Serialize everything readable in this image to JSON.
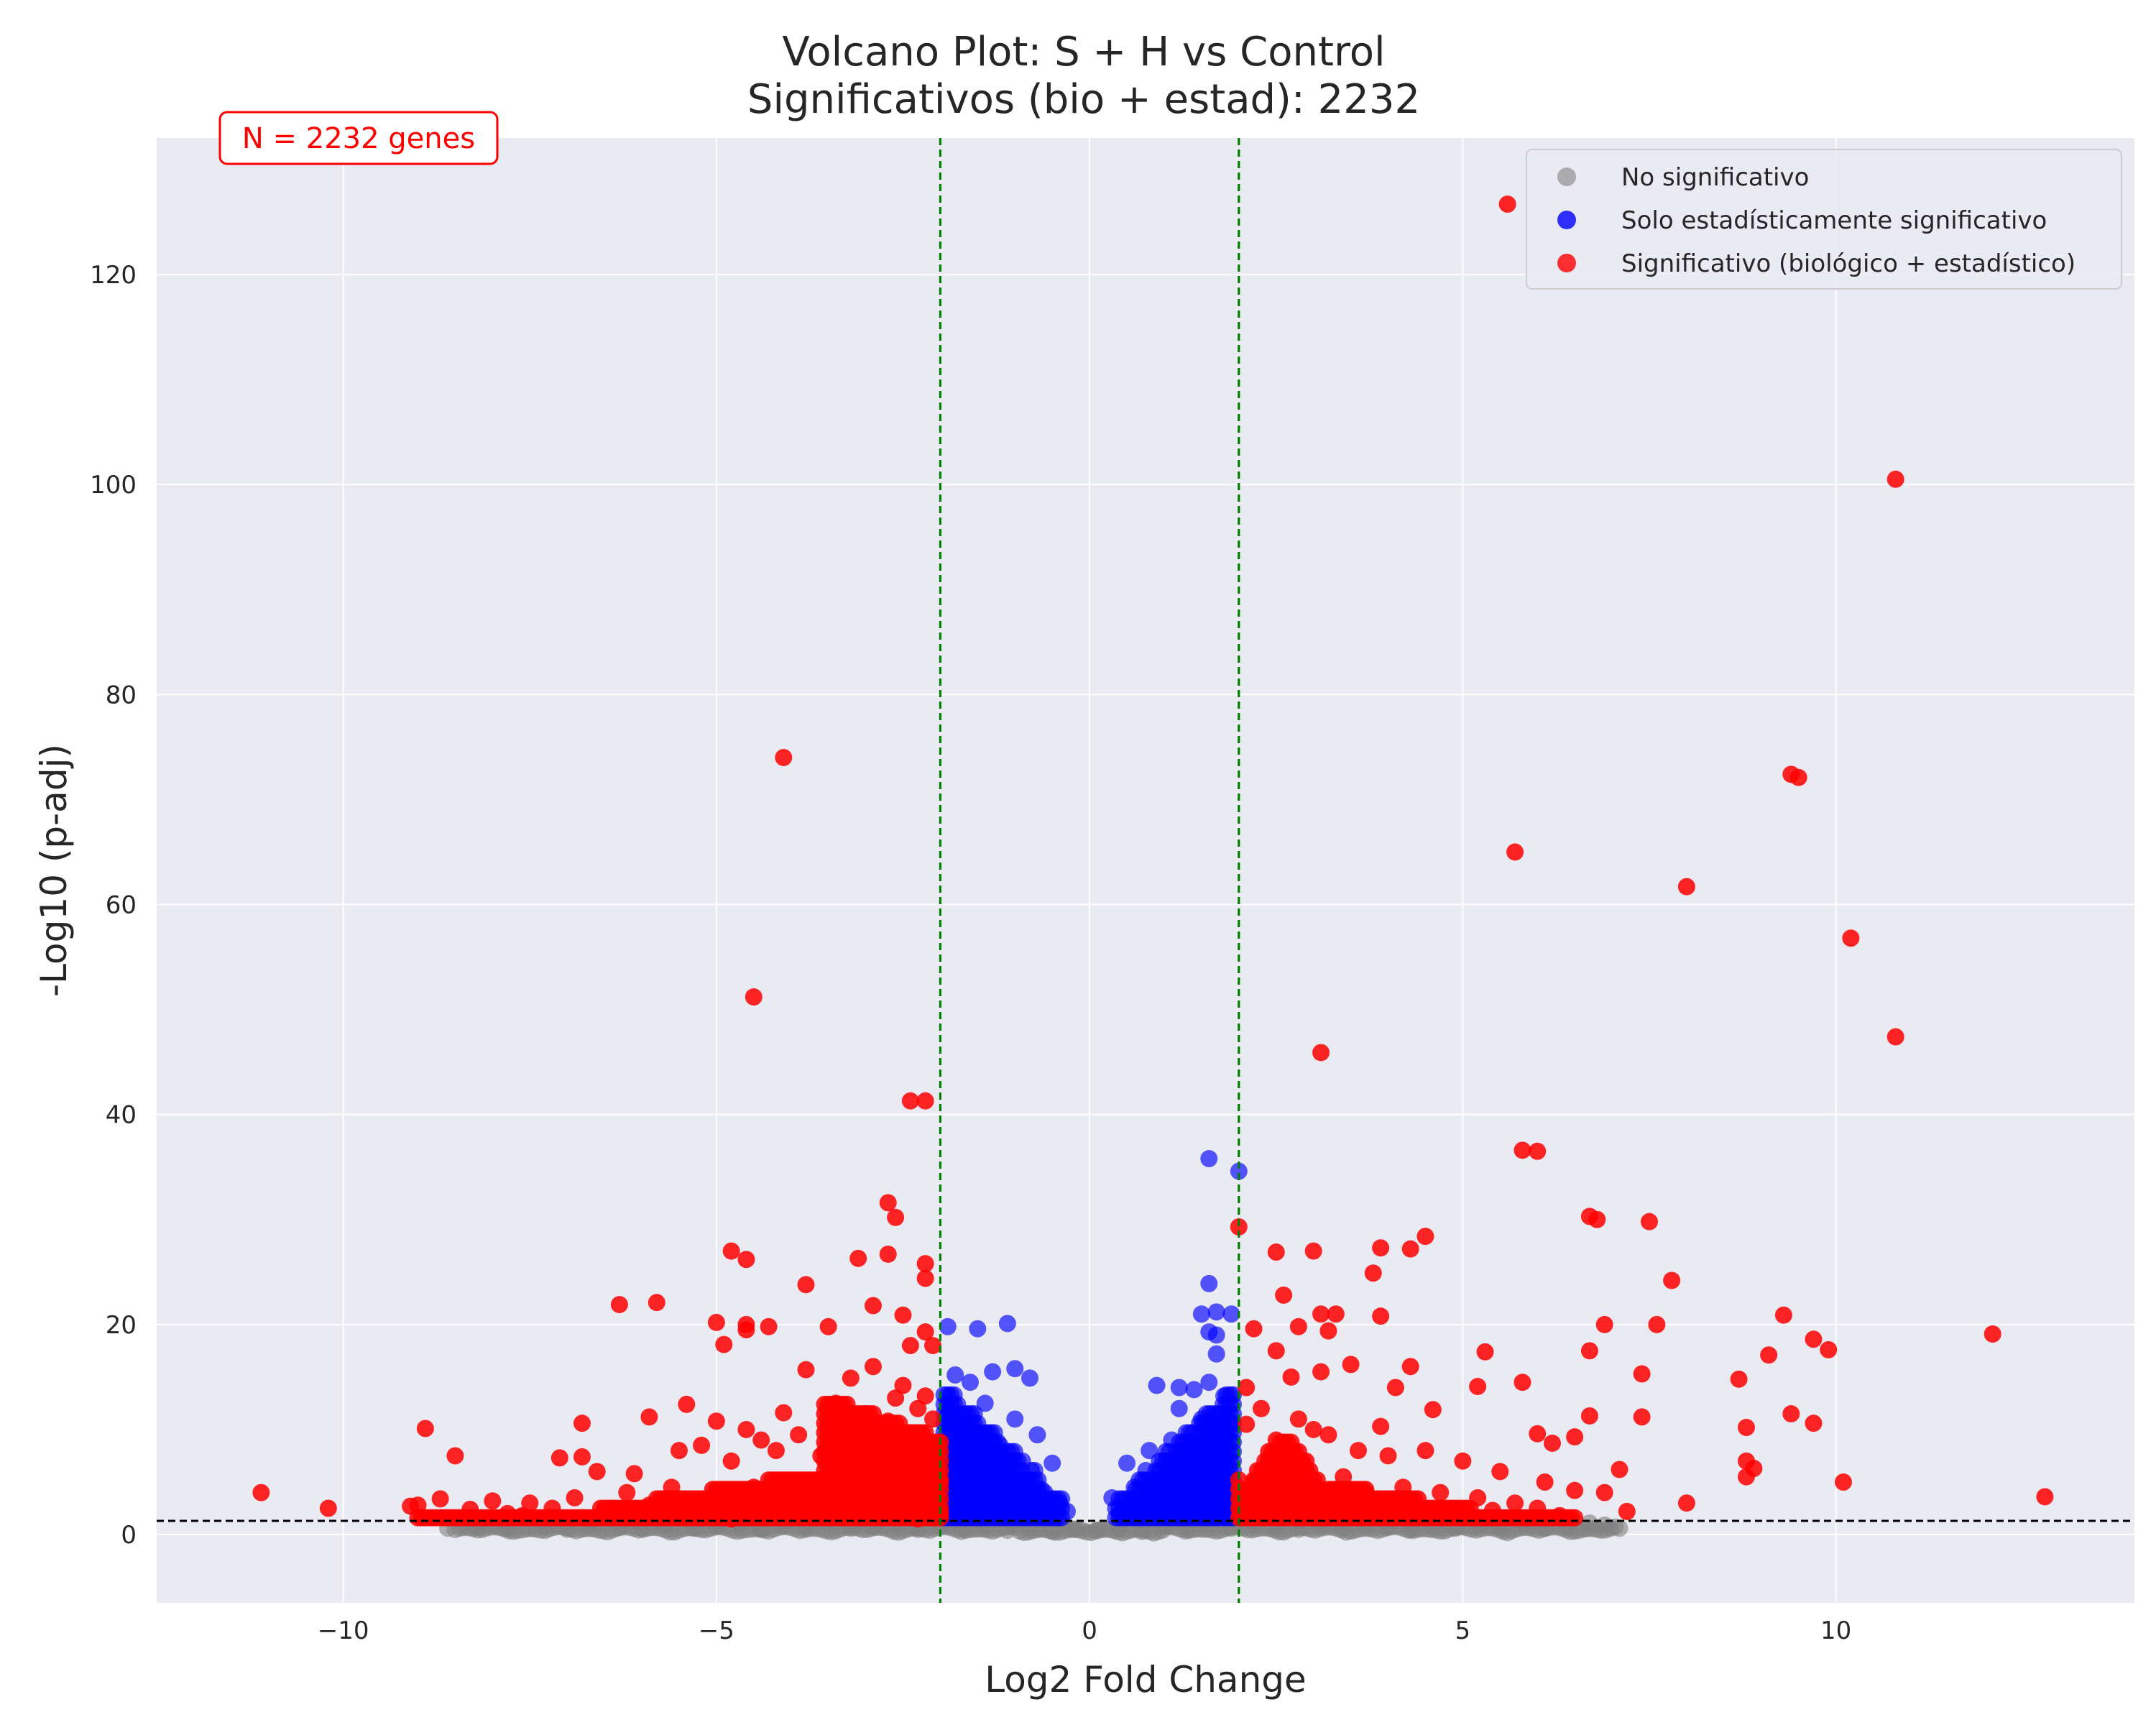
{
  "chart_data": {
    "type": "scatter",
    "title": "Volcano Plot: S + H vs Control",
    "subtitle": "Significativos (bio + estad): 2232",
    "xlabel": "Log2 Fold Change",
    "ylabel": "-Log10 (p-adj)",
    "xlim": [
      -12.5,
      14
    ],
    "ylim": [
      -6.5,
      133
    ],
    "xticks": [
      -10,
      -5,
      0,
      5,
      10
    ],
    "xtick_labels": [
      "−10",
      "−5",
      "0",
      "5",
      "10"
    ],
    "yticks": [
      0,
      20,
      40,
      60,
      80,
      100,
      120
    ],
    "ytick_labels": [
      "0",
      "20",
      "40",
      "60",
      "80",
      "100",
      "120"
    ],
    "grid": true,
    "background": "#eaeaf2",
    "legend_position": "top-right",
    "annotation": "N = 2232 genes",
    "thresholds": {
      "x": [
        -2,
        2
      ],
      "y": 1.3
    },
    "colors": {
      "ns": "#808080",
      "stat": "#0000ff",
      "sig": "#ff0000",
      "vline": "#008000",
      "hline": "#000000"
    },
    "series": [
      {
        "name": "No significativo",
        "color": "#808080",
        "points": [
          [
            -8.6,
            0.6
          ],
          [
            -8.2,
            0.7
          ],
          [
            -7.8,
            0.6
          ],
          [
            -7.3,
            0.8
          ],
          [
            -7.0,
            0.5
          ],
          [
            -6.7,
            0.9
          ],
          [
            -6.3,
            0.7
          ],
          [
            -6.0,
            0.6
          ],
          [
            -5.7,
            0.9
          ],
          [
            -5.3,
            0.6
          ],
          [
            -5.0,
            0.8
          ],
          [
            -4.7,
            1.0
          ],
          [
            -4.4,
            0.5
          ],
          [
            -4.1,
            0.9
          ],
          [
            -3.8,
            0.7
          ],
          [
            -3.5,
            1.1
          ],
          [
            -3.2,
            0.6
          ],
          [
            -2.9,
            0.8
          ],
          [
            -2.6,
            1.0
          ],
          [
            -2.3,
            0.5
          ],
          [
            -2.0,
            0.8
          ],
          [
            -1.7,
            0.6
          ],
          [
            -1.4,
            0.9
          ],
          [
            -1.1,
            0.4
          ],
          [
            -0.8,
            0.7
          ],
          [
            -0.5,
            0.3
          ],
          [
            -0.2,
            0.5
          ],
          [
            0.1,
            0.4
          ],
          [
            0.4,
            0.6
          ],
          [
            0.7,
            0.3
          ],
          [
            1.0,
            0.8
          ],
          [
            1.3,
            0.5
          ],
          [
            1.6,
            0.9
          ],
          [
            1.9,
            0.6
          ],
          [
            2.2,
            1.0
          ],
          [
            2.5,
            0.7
          ],
          [
            2.8,
            0.5
          ],
          [
            3.1,
            0.9
          ],
          [
            3.4,
            0.6
          ],
          [
            3.7,
            1.0
          ],
          [
            4.0,
            0.7
          ],
          [
            4.3,
            0.5
          ],
          [
            4.6,
            0.8
          ],
          [
            4.9,
            0.6
          ],
          [
            5.2,
            0.9
          ],
          [
            5.5,
            0.7
          ],
          [
            5.8,
            1.0
          ],
          [
            6.1,
            0.6
          ],
          [
            6.4,
            0.8
          ],
          [
            6.7,
            1.1
          ],
          [
            6.9,
            0.9
          ],
          [
            7.1,
            0.6
          ]
        ]
      },
      {
        "name": "Solo estadísticamente significativo",
        "color": "#0000ff",
        "points": [
          [
            -1.9,
            19.8
          ],
          [
            -1.5,
            19.6
          ],
          [
            -1.1,
            20.1
          ],
          [
            -1.8,
            15.2
          ],
          [
            -1.3,
            15.5
          ],
          [
            -1.0,
            15.8
          ],
          [
            -0.8,
            14.9
          ],
          [
            -1.6,
            14.5
          ],
          [
            -1.9,
            12.0
          ],
          [
            -1.4,
            12.5
          ],
          [
            -1.0,
            11.0
          ],
          [
            -0.7,
            9.5
          ],
          [
            -0.5,
            6.8
          ],
          [
            -1.7,
            9.0
          ],
          [
            -1.2,
            8.5
          ],
          [
            -0.9,
            7.0
          ],
          [
            -1.8,
            6.0
          ],
          [
            -1.4,
            5.5
          ],
          [
            -0.6,
            4.0
          ],
          [
            -0.4,
            3.0
          ],
          [
            -1.9,
            3.5
          ],
          [
            -1.1,
            3.0
          ],
          [
            -0.3,
            2.2
          ],
          [
            -1.6,
            2.5
          ],
          [
            1.6,
            35.8
          ],
          [
            2.0,
            34.6
          ],
          [
            1.6,
            23.9
          ],
          [
            1.5,
            21.0
          ],
          [
            1.7,
            21.2
          ],
          [
            1.6,
            19.3
          ],
          [
            1.7,
            19.0
          ],
          [
            1.9,
            21.0
          ],
          [
            0.9,
            14.2
          ],
          [
            1.2,
            14.0
          ],
          [
            1.4,
            13.8
          ],
          [
            1.6,
            14.5
          ],
          [
            1.8,
            13.2
          ],
          [
            1.7,
            17.2
          ],
          [
            1.2,
            12.0
          ],
          [
            1.5,
            11.0
          ],
          [
            1.9,
            10.5
          ],
          [
            0.5,
            6.8
          ],
          [
            0.8,
            8.0
          ],
          [
            1.1,
            9.0
          ],
          [
            1.4,
            8.5
          ],
          [
            1.8,
            9.5
          ],
          [
            0.3,
            3.5
          ],
          [
            0.6,
            4.5
          ],
          [
            1.0,
            5.0
          ],
          [
            1.3,
            6.0
          ],
          [
            1.7,
            5.5
          ],
          [
            0.4,
            2.0
          ],
          [
            0.9,
            2.5
          ],
          [
            1.5,
            3.0
          ],
          [
            1.9,
            4.0
          ]
        ]
      },
      {
        "name": "Significativo (biológico + estadístico)",
        "color": "#ff0000",
        "points": [
          [
            5.6,
            126.7
          ],
          [
            10.8,
            100.5
          ],
          [
            -4.1,
            74.0
          ],
          [
            9.4,
            72.4
          ],
          [
            9.5,
            72.1
          ],
          [
            5.7,
            65.0
          ],
          [
            8.0,
            61.7
          ],
          [
            10.2,
            56.8
          ],
          [
            -4.5,
            51.2
          ],
          [
            10.8,
            47.4
          ],
          [
            3.1,
            45.9
          ],
          [
            -2.4,
            41.3
          ],
          [
            -2.2,
            41.3
          ],
          [
            5.8,
            36.6
          ],
          [
            6.0,
            36.5
          ],
          [
            -2.7,
            31.6
          ],
          [
            6.7,
            30.3
          ],
          [
            6.8,
            30.0
          ],
          [
            7.5,
            29.8
          ],
          [
            -2.6,
            30.2
          ],
          [
            2.0,
            29.3
          ],
          [
            4.5,
            28.4
          ],
          [
            4.3,
            27.2
          ],
          [
            3.9,
            27.3
          ],
          [
            -4.8,
            27.0
          ],
          [
            -4.6,
            26.2
          ],
          [
            -3.1,
            26.3
          ],
          [
            -2.7,
            26.7
          ],
          [
            2.5,
            26.9
          ],
          [
            3.0,
            27.0
          ],
          [
            -2.2,
            25.8
          ],
          [
            3.8,
            24.9
          ],
          [
            7.8,
            24.2
          ],
          [
            -3.8,
            23.8
          ],
          [
            -2.2,
            24.4
          ],
          [
            2.6,
            22.8
          ],
          [
            -6.3,
            21.9
          ],
          [
            -5.8,
            22.1
          ],
          [
            -2.9,
            21.8
          ],
          [
            -2.5,
            20.9
          ],
          [
            3.1,
            21.0
          ],
          [
            3.3,
            21.0
          ],
          [
            3.9,
            20.8
          ],
          [
            9.3,
            20.9
          ],
          [
            -5.0,
            20.2
          ],
          [
            -4.6,
            20.0
          ],
          [
            -4.3,
            19.8
          ],
          [
            -3.5,
            19.8
          ],
          [
            -2.2,
            19.3
          ],
          [
            2.2,
            19.6
          ],
          [
            2.8,
            19.8
          ],
          [
            3.2,
            19.4
          ],
          [
            6.9,
            20.0
          ],
          [
            7.6,
            20.0
          ],
          [
            12.1,
            19.1
          ],
          [
            9.7,
            18.6
          ],
          [
            9.9,
            17.6
          ],
          [
            9.1,
            17.1
          ],
          [
            6.7,
            17.5
          ],
          [
            5.3,
            17.4
          ],
          [
            -4.9,
            18.1
          ],
          [
            -4.6,
            19.5
          ],
          [
            -2.4,
            18.0
          ],
          [
            -2.1,
            18.0
          ],
          [
            2.5,
            17.5
          ],
          [
            3.5,
            16.2
          ],
          [
            4.3,
            16.0
          ],
          [
            7.4,
            15.3
          ],
          [
            8.7,
            14.8
          ],
          [
            5.8,
            14.5
          ],
          [
            5.2,
            14.1
          ],
          [
            4.1,
            14.0
          ],
          [
            3.1,
            15.5
          ],
          [
            2.7,
            15.0
          ],
          [
            9.4,
            11.5
          ],
          [
            9.7,
            10.6
          ],
          [
            8.8,
            10.2
          ],
          [
            7.4,
            11.2
          ],
          [
            6.7,
            11.3
          ],
          [
            4.6,
            11.9
          ],
          [
            3.9,
            10.3
          ],
          [
            -8.9,
            10.1
          ],
          [
            -6.8,
            10.6
          ],
          [
            -5.9,
            11.2
          ],
          [
            -5.4,
            12.4
          ],
          [
            -5.0,
            10.8
          ],
          [
            -4.6,
            10.0
          ],
          [
            -4.1,
            11.6
          ],
          [
            -3.8,
            15.7
          ],
          [
            -3.2,
            14.9
          ],
          [
            -2.9,
            16.0
          ],
          [
            -2.5,
            14.2
          ],
          [
            -2.2,
            13.2
          ],
          [
            -3.4,
            12.5
          ],
          [
            -2.7,
            10.8
          ],
          [
            -3.9,
            9.5
          ],
          [
            -4.4,
            9.0
          ],
          [
            -8.5,
            7.5
          ],
          [
            -7.1,
            7.3
          ],
          [
            -6.8,
            7.4
          ],
          [
            -6.6,
            6.0
          ],
          [
            -6.1,
            5.8
          ],
          [
            -5.5,
            8.0
          ],
          [
            -5.2,
            8.5
          ],
          [
            -4.8,
            7.0
          ],
          [
            -4.2,
            8.0
          ],
          [
            -3.6,
            7.5
          ],
          [
            -3.1,
            9.0
          ],
          [
            -2.4,
            9.5
          ],
          [
            -2.1,
            8.0
          ],
          [
            -2.8,
            6.5
          ],
          [
            -3.5,
            5.5
          ],
          [
            -4.0,
            5.0
          ],
          [
            -4.5,
            4.5
          ],
          [
            -5.0,
            4.0
          ],
          [
            -5.6,
            4.5
          ],
          [
            -6.2,
            4.0
          ],
          [
            -6.9,
            3.5
          ],
          [
            -7.5,
            3.0
          ],
          [
            -8.0,
            3.2
          ],
          [
            -8.7,
            3.4
          ],
          [
            -9.0,
            2.8
          ],
          [
            -7.8,
            2.0
          ],
          [
            -7.2,
            2.5
          ],
          [
            -6.5,
            2.2
          ],
          [
            -5.9,
            2.8
          ],
          [
            -5.3,
            2.5
          ],
          [
            -4.7,
            3.0
          ],
          [
            -4.2,
            2.5
          ],
          [
            -3.7,
            3.0
          ],
          [
            -3.2,
            3.5
          ],
          [
            -2.7,
            4.0
          ],
          [
            -2.2,
            3.0
          ],
          [
            -2.0,
            2.0
          ],
          [
            -2.5,
            2.2
          ],
          [
            -3.0,
            2.0
          ],
          [
            -11.1,
            4.0
          ],
          [
            -10.2,
            2.5
          ],
          [
            -9.1,
            2.7
          ],
          [
            -8.3,
            2.4
          ],
          [
            -7.6,
            1.8
          ],
          [
            -6.8,
            1.6
          ],
          [
            -6.0,
            1.7
          ],
          [
            -5.5,
            1.6
          ],
          [
            -4.8,
            1.5
          ],
          [
            -4.3,
            1.6
          ],
          [
            -3.8,
            1.8
          ],
          [
            -3.3,
            1.6
          ],
          [
            -2.8,
            1.7
          ],
          [
            -2.3,
            1.5
          ],
          [
            -2.0,
            5.0
          ],
          [
            -2.1,
            11.0
          ],
          [
            -2.3,
            12.0
          ],
          [
            -2.6,
            13.0
          ],
          [
            -3.0,
            11.5
          ],
          [
            -2.4,
            7.0
          ],
          [
            -2.9,
            8.0
          ],
          [
            -3.3,
            6.5
          ],
          [
            2.1,
            10.5
          ],
          [
            2.3,
            12.0
          ],
          [
            2.5,
            9.0
          ],
          [
            2.8,
            11.0
          ],
          [
            3.2,
            9.5
          ],
          [
            3.6,
            8.0
          ],
          [
            2.4,
            7.0
          ],
          [
            2.9,
            6.0
          ],
          [
            3.4,
            5.5
          ],
          [
            4.0,
            7.5
          ],
          [
            4.5,
            8.0
          ],
          [
            5.0,
            7.0
          ],
          [
            5.5,
            6.0
          ],
          [
            6.0,
            9.6
          ],
          [
            6.2,
            8.7
          ],
          [
            6.5,
            9.3
          ],
          [
            6.1,
            5.0
          ],
          [
            6.5,
            4.2
          ],
          [
            6.9,
            4.0
          ],
          [
            7.1,
            6.2
          ],
          [
            7.2,
            2.2
          ],
          [
            8.0,
            3.0
          ],
          [
            8.8,
            5.5
          ],
          [
            8.8,
            7.0
          ],
          [
            8.9,
            6.3
          ],
          [
            10.1,
            5.0
          ],
          [
            12.8,
            3.6
          ],
          [
            5.7,
            3.0
          ],
          [
            5.2,
            3.5
          ],
          [
            4.7,
            4.0
          ],
          [
            4.2,
            4.5
          ],
          [
            3.7,
            4.0
          ],
          [
            3.3,
            3.5
          ],
          [
            2.8,
            4.0
          ],
          [
            2.3,
            3.0
          ],
          [
            2.1,
            2.0
          ],
          [
            2.6,
            2.2
          ],
          [
            3.1,
            2.0
          ],
          [
            3.9,
            2.5
          ],
          [
            4.4,
            2.2
          ],
          [
            4.9,
            2.0
          ],
          [
            5.4,
            2.3
          ],
          [
            6.0,
            2.5
          ],
          [
            6.3,
            1.8
          ],
          [
            2.2,
            5.0
          ],
          [
            2.6,
            8.0
          ],
          [
            3.0,
            10.0
          ],
          [
            2.1,
            14.0
          ]
        ]
      }
    ]
  }
}
